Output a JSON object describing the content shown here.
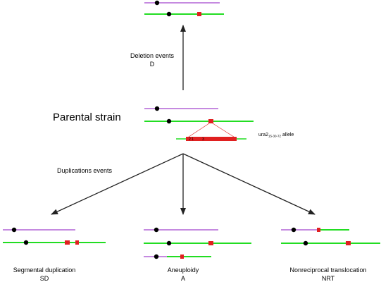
{
  "labels": {
    "deletion_title": "Deletion events",
    "deletion_code": "D",
    "parental_title": "Parental strain",
    "allele_prefix": "ura2",
    "allele_subscript": "15-30-72",
    "allele_suffix": " allele",
    "allele_markers": "2 1",
    "allele_marker_3": "3",
    "duplications_title": "Duplications events",
    "sd_title": "Segmental duplication",
    "sd_code": "SD",
    "aneuploidy_title": "Aneuploidy",
    "aneuploidy_code": "A",
    "nrt_title": "Nonreciprocal translocation",
    "nrt_code": "NRT"
  },
  "colors": {
    "chromosome_purple": "#c58ae0",
    "chromosome_green": "#22dd22",
    "centromere": "#000000",
    "mutation_marker": "#e02020",
    "arrow": "#222222"
  }
}
